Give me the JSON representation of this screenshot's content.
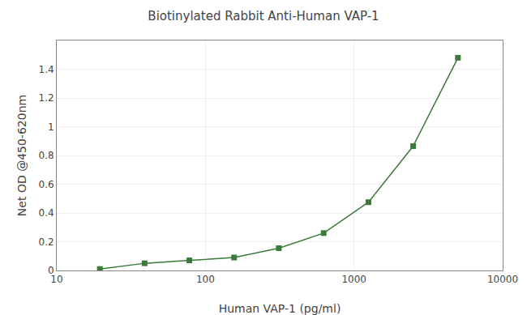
{
  "chart_data": {
    "type": "line",
    "title": "Biotinylated Rabbit Anti-Human VAP-1",
    "xlabel": "Human VAP-1 (pg/ml)",
    "ylabel": "Net OD @450-620nm",
    "x": [
      19.5,
      39,
      78,
      156,
      312,
      625,
      1250,
      2500,
      5000
    ],
    "values": [
      0.01,
      0.05,
      0.07,
      0.09,
      0.155,
      0.26,
      0.475,
      0.865,
      1.48
    ],
    "color": "#3a7a3a",
    "marker": "square",
    "log": "x",
    "xlim": [
      10,
      10000
    ],
    "xticks": [
      10,
      100,
      1000,
      10000
    ],
    "ylim": [
      0,
      1.6
    ],
    "yticks": [
      0,
      0.2,
      0.4,
      0.6,
      0.8,
      1,
      1.2,
      1.4
    ],
    "grid": true
  }
}
